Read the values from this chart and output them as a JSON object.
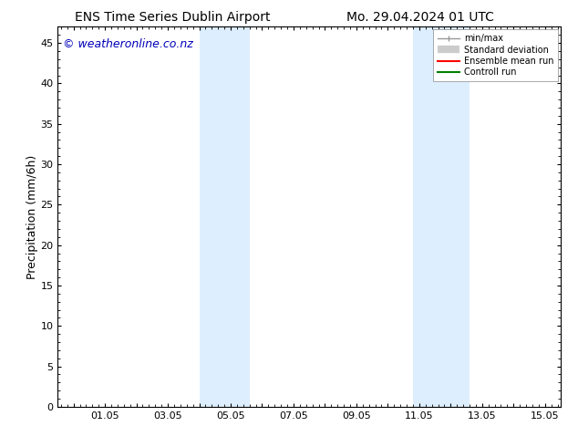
{
  "title_left": "ENS Time Series Dublin Airport",
  "title_right": "Mo. 29.04.2024 01 UTC",
  "ylabel": "Precipitation (mm/6h)",
  "watermark": "© weatheronline.co.nz",
  "xlim_start": -0.5,
  "xlim_end": 15.5,
  "ylim": [
    0,
    47
  ],
  "yticks": [
    0,
    5,
    10,
    15,
    20,
    25,
    30,
    35,
    40,
    45
  ],
  "xtick_labels": [
    "",
    "01.05",
    "",
    "03.05",
    "",
    "05.05",
    "",
    "07.05",
    "",
    "09.05",
    "",
    "11.05",
    "",
    "13.05",
    "",
    "15.05"
  ],
  "xtick_positions": [
    0,
    1,
    2,
    3,
    4,
    5,
    6,
    7,
    8,
    9,
    10,
    11,
    12,
    13,
    14,
    15
  ],
  "shaded_regions": [
    {
      "x_start": 4.0,
      "x_end": 5.6,
      "color": "#ddeeff"
    },
    {
      "x_start": 10.8,
      "x_end": 12.6,
      "color": "#ddeeff"
    }
  ],
  "legend_labels": [
    "min/max",
    "Standard deviation",
    "Ensemble mean run",
    "Controll run"
  ],
  "legend_colors": [
    "#999999",
    "#cccccc",
    "#ff0000",
    "#008000"
  ],
  "legend_linewidths": [
    1.0,
    6,
    1.5,
    1.5
  ],
  "background_color": "#ffffff",
  "plot_bg_color": "#ffffff",
  "watermark_color": "#0000bb",
  "title_fontsize": 10,
  "axis_fontsize": 9,
  "tick_fontsize": 8,
  "watermark_fontsize": 9
}
